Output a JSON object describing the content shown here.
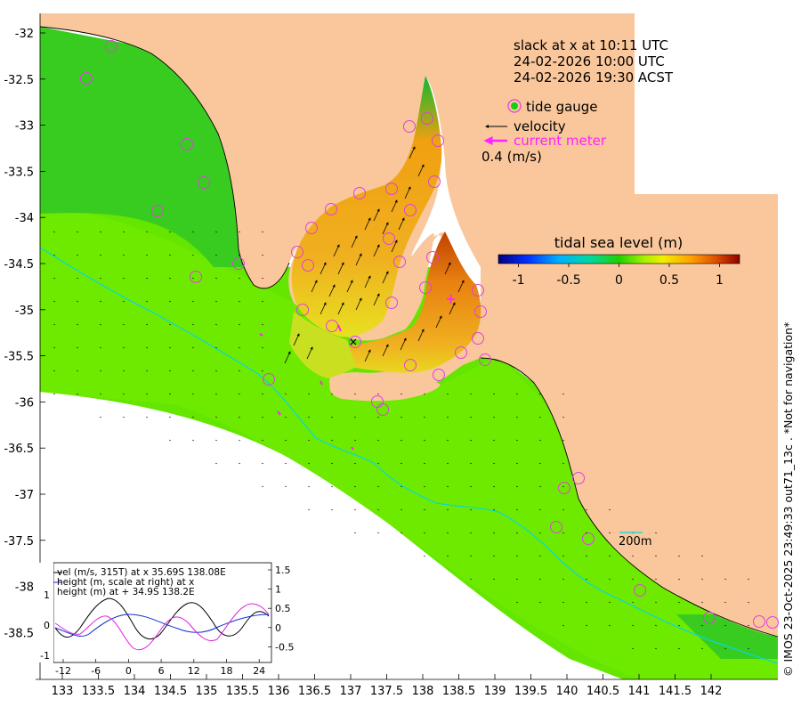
{
  "time": {
    "slack": "slack at x at 10:11 UTC",
    "utc": "24-02-2026 10:00 UTC",
    "local": "24-02-2026 19:30 ACST"
  },
  "legend": {
    "tide_gauge": "tide gauge",
    "velocity": "velocity",
    "current_meter": "current meter",
    "scale": "0.4 (m/s)"
  },
  "colorbar": {
    "title": "tidal sea level (m)",
    "min": -1.2,
    "max": 1.2,
    "ticks": [
      "-1",
      "-0.5",
      "0",
      "0.5",
      "1"
    ]
  },
  "isobath_label": "200m",
  "axes": {
    "lon_ticks": [
      "133",
      "133.5",
      "134",
      "134.5",
      "135",
      "135.5",
      "136",
      "136.5",
      "137",
      "137.5",
      "138",
      "138.5",
      "139",
      "139.5",
      "140",
      "140.5",
      "141",
      "141.5",
      "142"
    ],
    "lat_ticks": [
      "-32",
      "-32.5",
      "-33",
      "-33.5",
      "-34",
      "-34.5",
      "-35",
      "-35.5",
      "-36",
      "-36.5",
      "-37",
      "-37.5",
      "-38",
      "-38.5"
    ]
  },
  "inset": {
    "legend": [
      "vel (m/s, 315T) at x 35.69S 138.08E",
      "height (m, scale at right) at x",
      "height (m) at + 34.9S 138.2E"
    ],
    "x_ticks": [
      "-12",
      "-6",
      "0",
      "6",
      "12",
      "18",
      "24"
    ],
    "left_ticks": [
      "1",
      "0",
      "-1"
    ],
    "right_ticks": [
      "1.5",
      "1",
      "0.5",
      "0",
      "-0.5"
    ]
  },
  "copyright": "© IMOS 23-Oct-2025 23:49:33 out71_13c . *Not for navigation*",
  "colors": {
    "land": "#f9c79b",
    "sea_outer": "#64e600",
    "sea_mid": "#45d41a",
    "sea_gulf": "#f0a418",
    "gauge": "#e040e0",
    "current_meter": "#ff22ff",
    "isobath": "#00d8e8"
  }
}
